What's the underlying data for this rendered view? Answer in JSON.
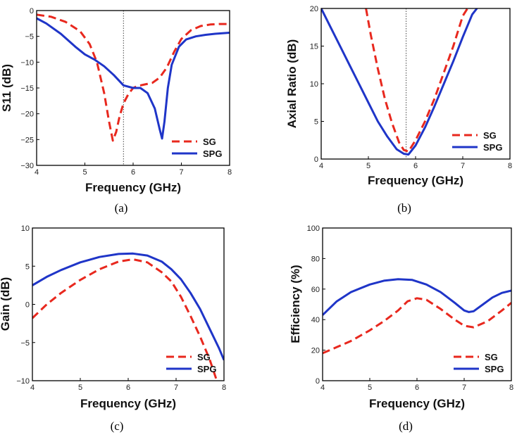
{
  "chart_data": [
    {
      "id": "a",
      "type": "line",
      "caption": "(a)",
      "xlabel": "Frequency (GHz)",
      "ylabel": "S11 (dB)",
      "xlim": [
        4,
        8
      ],
      "ylim": [
        -30,
        0
      ],
      "xticks": [
        4,
        5,
        6,
        7,
        8
      ],
      "yticks": [
        0,
        -5,
        -10,
        -15,
        -20,
        -25,
        -30
      ],
      "reference_x": 5.8,
      "legend": "bottom-right",
      "series": [
        {
          "name": "SG",
          "color": "#e8281e",
          "style": "dashed",
          "x": [
            4.0,
            4.3,
            4.6,
            4.9,
            5.1,
            5.25,
            5.4,
            5.5,
            5.58,
            5.65,
            5.72,
            5.8,
            5.9,
            6.0,
            6.1,
            6.25,
            6.4,
            6.55,
            6.7,
            6.85,
            7.0,
            7.2,
            7.4,
            7.6,
            7.8,
            8.0
          ],
          "y": [
            -0.8,
            -1.2,
            -2.2,
            -4.0,
            -6.5,
            -10.0,
            -16.0,
            -21.5,
            -25.2,
            -23.5,
            -20.5,
            -18.0,
            -16.2,
            -15.0,
            -14.6,
            -14.3,
            -14.0,
            -13.0,
            -11.0,
            -8.0,
            -5.5,
            -3.8,
            -3.0,
            -2.7,
            -2.6,
            -2.6
          ]
        },
        {
          "name": "SPG",
          "color": "#1f35c8",
          "style": "solid",
          "x": [
            4.0,
            4.2,
            4.5,
            4.8,
            5.0,
            5.2,
            5.4,
            5.6,
            5.8,
            6.0,
            6.15,
            6.3,
            6.45,
            6.55,
            6.6,
            6.65,
            6.72,
            6.8,
            6.95,
            7.1,
            7.3,
            7.5,
            7.7,
            8.0
          ],
          "y": [
            -1.5,
            -2.5,
            -4.5,
            -7.0,
            -8.5,
            -9.5,
            -10.8,
            -12.5,
            -14.5,
            -15.0,
            -15.0,
            -16.0,
            -19.0,
            -23.0,
            -24.8,
            -21.5,
            -15.0,
            -10.5,
            -7.0,
            -5.6,
            -5.0,
            -4.7,
            -4.5,
            -4.3
          ]
        }
      ]
    },
    {
      "id": "b",
      "type": "line",
      "caption": "(b)",
      "xlabel": "Frequency (GHz)",
      "ylabel": "Axial Ratio (dB)",
      "xlim": [
        4,
        8
      ],
      "ylim": [
        0,
        20
      ],
      "xticks": [
        4,
        5,
        6,
        7,
        8
      ],
      "yticks": [
        0,
        5,
        10,
        15,
        20
      ],
      "reference_x": 5.8,
      "legend": "bottom-right",
      "series": [
        {
          "name": "SG",
          "color": "#e8281e",
          "style": "dashed",
          "x": [
            4.95,
            5.05,
            5.2,
            5.35,
            5.5,
            5.65,
            5.75,
            5.85,
            6.0,
            6.2,
            6.4,
            6.6,
            6.8,
            6.9,
            7.0,
            7.1
          ],
          "y": [
            20.0,
            16.5,
            12.0,
            8.0,
            4.8,
            2.2,
            1.2,
            1.0,
            2.5,
            5.0,
            8.0,
            11.5,
            15.0,
            17.0,
            19.0,
            20.0
          ]
        },
        {
          "name": "SPG",
          "color": "#1f35c8",
          "style": "solid",
          "x": [
            4.0,
            4.2,
            4.4,
            4.6,
            4.8,
            5.0,
            5.2,
            5.4,
            5.6,
            5.75,
            5.85,
            6.0,
            6.2,
            6.4,
            6.6,
            6.8,
            7.0,
            7.2,
            7.3
          ],
          "y": [
            20.0,
            17.5,
            15.0,
            12.5,
            10.0,
            7.5,
            5.0,
            3.0,
            1.3,
            0.7,
            0.6,
            1.8,
            4.2,
            7.0,
            10.0,
            13.0,
            16.2,
            19.2,
            20.0
          ]
        }
      ]
    },
    {
      "id": "c",
      "type": "line",
      "caption": "(c)",
      "xlabel": "Frequency (GHz)",
      "ylabel": "Gain (dB)",
      "xlim": [
        4,
        8
      ],
      "ylim": [
        -10,
        10
      ],
      "xticks": [
        4,
        5,
        6,
        7,
        8
      ],
      "yticks": [
        10,
        5,
        0,
        -5,
        -10
      ],
      "legend": "bottom-right",
      "series": [
        {
          "name": "SG",
          "color": "#e8281e",
          "style": "dashed",
          "x": [
            4.0,
            4.3,
            4.6,
            5.0,
            5.4,
            5.8,
            6.1,
            6.4,
            6.7,
            6.9,
            7.1,
            7.3,
            7.5,
            7.7,
            7.85
          ],
          "y": [
            -1.8,
            0.0,
            1.5,
            3.2,
            4.6,
            5.6,
            5.9,
            5.5,
            4.2,
            3.0,
            1.0,
            -1.5,
            -4.2,
            -7.2,
            -10.0
          ]
        },
        {
          "name": "SPG",
          "color": "#1f35c8",
          "style": "solid",
          "x": [
            4.0,
            4.3,
            4.6,
            5.0,
            5.4,
            5.8,
            6.1,
            6.4,
            6.7,
            6.9,
            7.1,
            7.3,
            7.5,
            7.7,
            7.9,
            8.0
          ],
          "y": [
            2.5,
            3.6,
            4.5,
            5.5,
            6.2,
            6.6,
            6.65,
            6.4,
            5.6,
            4.6,
            3.3,
            1.5,
            -0.6,
            -3.2,
            -5.8,
            -7.3
          ]
        }
      ]
    },
    {
      "id": "d",
      "type": "line",
      "caption": "(d)",
      "xlabel": "Frequency (GHz)",
      "ylabel": "Efficiency (%)",
      "xlim": [
        4,
        8
      ],
      "ylim": [
        0,
        100
      ],
      "xticks": [
        4,
        5,
        6,
        7,
        8
      ],
      "yticks": [
        0,
        20,
        40,
        60,
        80,
        100
      ],
      "legend": "bottom-right",
      "series": [
        {
          "name": "SG",
          "color": "#e8281e",
          "style": "dashed",
          "x": [
            4.0,
            4.3,
            4.6,
            5.0,
            5.3,
            5.6,
            5.8,
            6.0,
            6.2,
            6.5,
            6.8,
            7.0,
            7.2,
            7.5,
            7.8,
            8.0
          ],
          "y": [
            18,
            22,
            26,
            33,
            39,
            46,
            52,
            54,
            53,
            47,
            40,
            36,
            35,
            39,
            46,
            51
          ]
        },
        {
          "name": "SPG",
          "color": "#1f35c8",
          "style": "solid",
          "x": [
            4.0,
            4.3,
            4.6,
            5.0,
            5.3,
            5.6,
            5.9,
            6.2,
            6.5,
            6.8,
            7.0,
            7.1,
            7.2,
            7.4,
            7.6,
            7.8,
            8.0
          ],
          "y": [
            43,
            52,
            58,
            63,
            65.5,
            66.5,
            66,
            63,
            58,
            51,
            46,
            45,
            45.5,
            50,
            54.5,
            57.5,
            59
          ]
        }
      ]
    }
  ]
}
